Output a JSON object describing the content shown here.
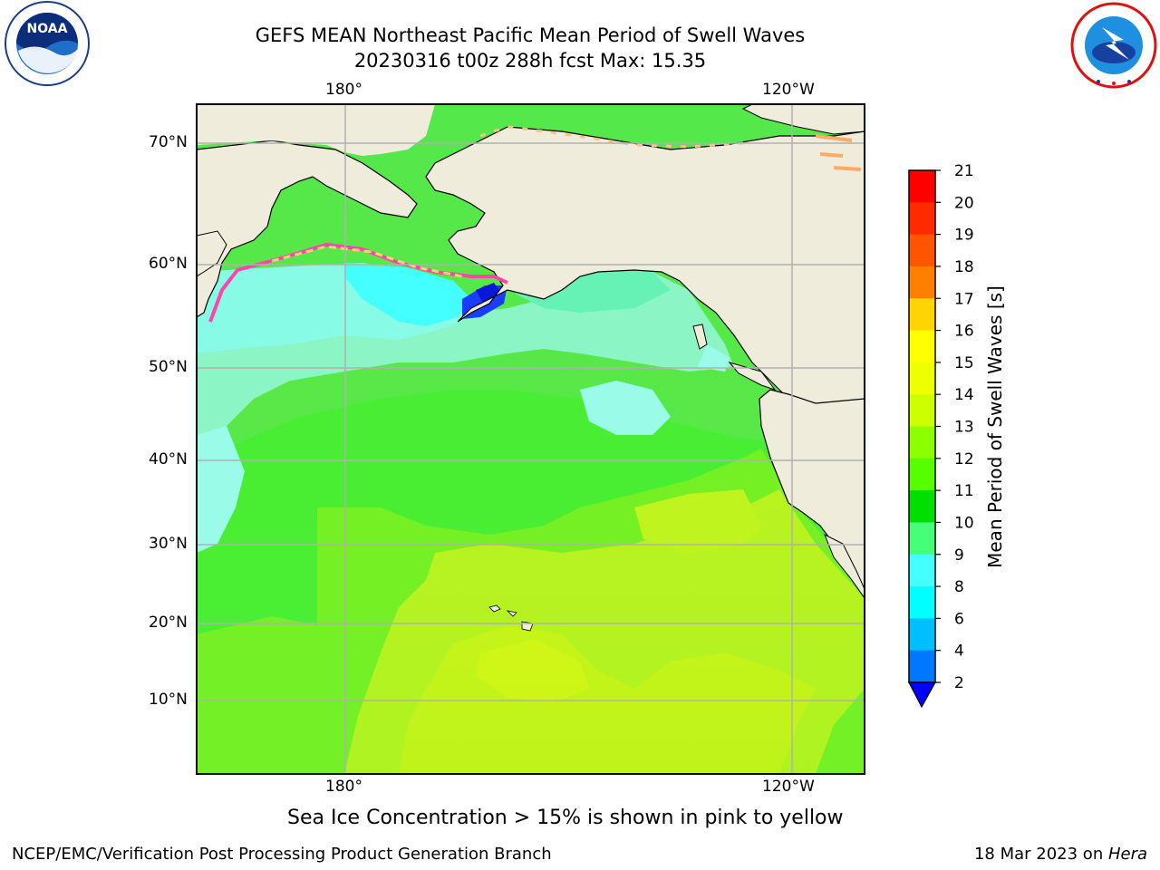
{
  "header": {
    "title_line1": "GEFS MEAN Northeast Pacific Mean Period of Swell Waves",
    "title_line2": "20230316 t00z 288h fcst   Max: 15.35"
  },
  "logos": {
    "left": {
      "name": "noaa-logo",
      "text": "NOAA",
      "ring_text": "NATIONAL OCEANIC AND ATMOSPHERIC ADMINISTRATION · U.S. DEPARTMENT OF COMMERCE"
    },
    "right": {
      "name": "nws-logo",
      "ring_text": "NATIONAL WEATHER SERVICE"
    }
  },
  "map": {
    "lon_ticks_top": [
      "180°",
      "120°W"
    ],
    "lon_ticks_bottom": [
      "180°",
      "120°W"
    ],
    "lat_ticks": [
      "70°N",
      "60°N",
      "50°N",
      "40°N",
      "30°N",
      "20°N",
      "10°N"
    ],
    "land_color": "#efecdc",
    "grid_color": "#b0b0b0"
  },
  "colorbar": {
    "label": "Mean Period of Swell Waves [s]",
    "tick_labels": [
      "21",
      "20",
      "19",
      "18",
      "17",
      "16",
      "15",
      "14",
      "13",
      "12",
      "11",
      "10",
      "9",
      "8",
      "6",
      "4",
      "2"
    ],
    "bins_top_to_bottom": [
      "#ff0000",
      "#ff2a00",
      "#ff5500",
      "#ff7f00",
      "#ffaa00",
      "#ffd400",
      "#ffff00",
      "#eeff00",
      "#ccff00",
      "#8cff00",
      "#55ff00",
      "#00e000",
      "#44ff77",
      "#88ffdd",
      "#44ffff",
      "#00ffff",
      "#00bfff",
      "#0077ff"
    ],
    "under_color": "#0000ff"
  },
  "footer": {
    "note": "Sea Ice Concentration > 15% is shown in pink to yellow",
    "left": "NCEP/EMC/Verification Post Processing Product Generation Branch",
    "right_prefix": "18 Mar 2023 on ",
    "right_host": "Hera"
  }
}
